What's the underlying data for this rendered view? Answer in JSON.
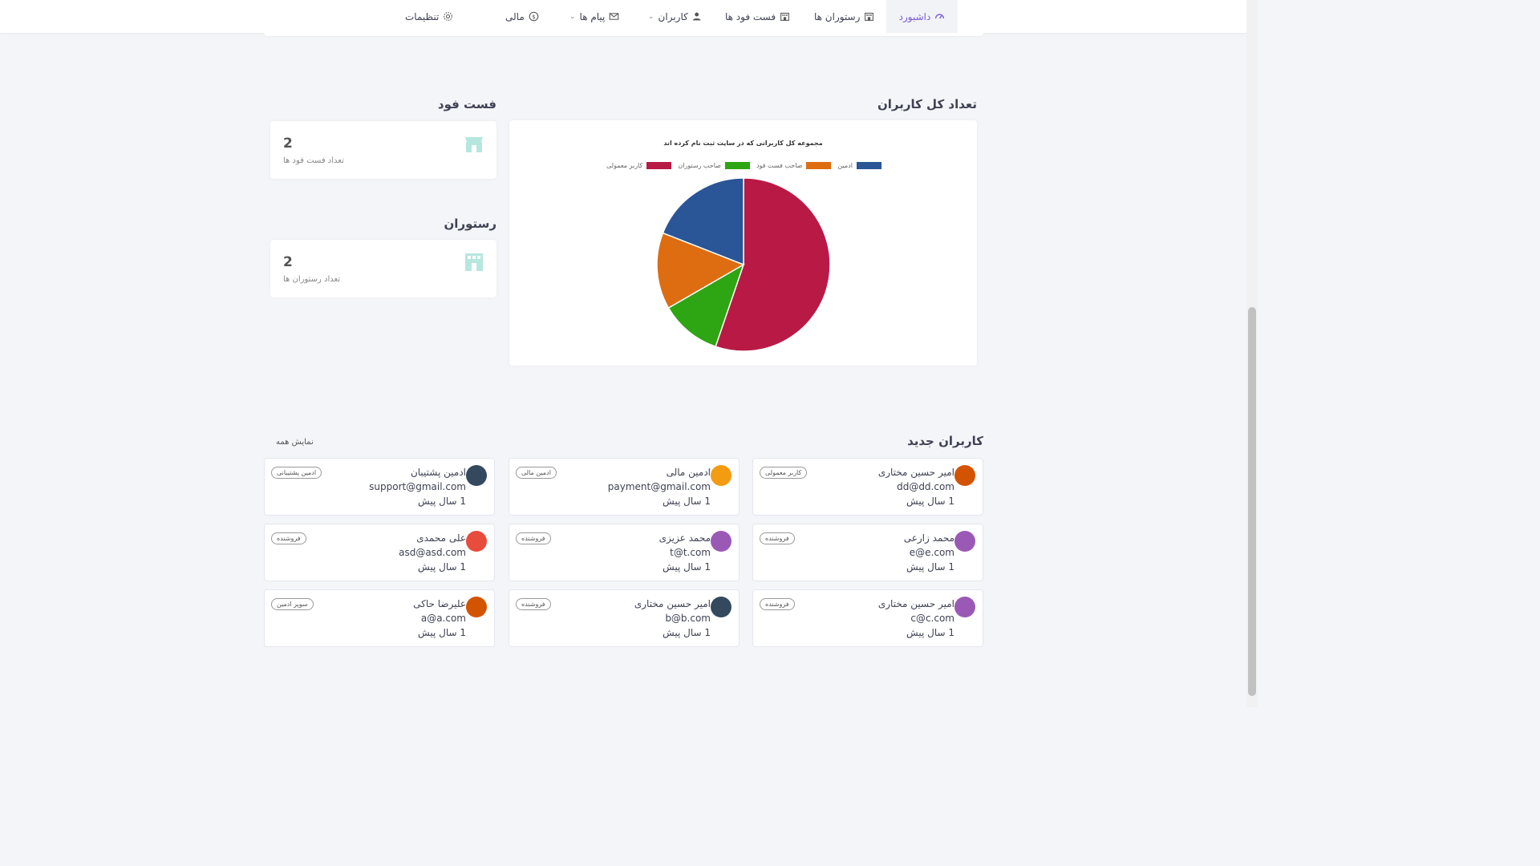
{
  "nav": {
    "dashboard": "داشبورد",
    "restaurants": "رستوران ها",
    "fastfoods": "فست فود ها",
    "users": "کاربران",
    "messages": "پیام ها",
    "finance": "مالی",
    "settings": "تنظیمات",
    "active_color": "#7b5bd6"
  },
  "fastfood_section": {
    "title": "فست فود",
    "count": "2",
    "label": "تعداد فست فود ها"
  },
  "restaurant_section": {
    "title": "رستوران",
    "count": "2",
    "label": "تعداد رستوران ها"
  },
  "users_total": {
    "title": "تعداد کل کاربران"
  },
  "chart_data": {
    "type": "pie",
    "title": "مجموعه کل کاربرانی که در سایت ثبت نام کرده اند",
    "legend_position": "top",
    "labels": [
      "ادمین",
      "صاحب فست فود",
      "صاحب رستوران",
      "کاربر معمولی"
    ],
    "values": [
      2,
      1.5,
      1.2,
      5.8
    ],
    "colors": [
      "#2a5597",
      "#de6d11",
      "#2ea512",
      "#b81a45"
    ]
  },
  "new_users": {
    "title": "کاربران جدید",
    "show_all": "نمایش همه",
    "list": [
      {
        "name": "امیر حسین مختاری",
        "email": "dd@dd.com",
        "time": "1 سال پیش",
        "role": "کاربر معمولی",
        "avatar_color": "#d35400"
      },
      {
        "name": "ادمین مالی",
        "email": "payment@gmail.com",
        "time": "1 سال پیش",
        "role": "ادمین مالی",
        "avatar_color": "#f39c12"
      },
      {
        "name": "ادمین پشتیبان",
        "email": "support@gmail.com",
        "time": "1 سال پیش",
        "role": "ادمین پشتیبانی",
        "avatar_color": "#34495e"
      },
      {
        "name": "محمد زارعی",
        "email": "e@e.com",
        "time": "1 سال پیش",
        "role": "فروشنده",
        "avatar_color": "#9b59b6"
      },
      {
        "name": "محمد عزیزی",
        "email": "t@t.com",
        "time": "1 سال پیش",
        "role": "فروشنده",
        "avatar_color": "#9b59b6"
      },
      {
        "name": "علی محمدی",
        "email": "asd@asd.com",
        "time": "1 سال پیش",
        "role": "فروشنده",
        "avatar_color": "#e74c3c"
      },
      {
        "name": "امیر حسین مختاری",
        "email": "c@c.com",
        "time": "1 سال پیش",
        "role": "فروشنده",
        "avatar_color": "#9b59b6"
      },
      {
        "name": "امیر حسین مختاری",
        "email": "b@b.com",
        "time": "1 سال پیش",
        "role": "فروشنده",
        "avatar_color": "#34495e"
      },
      {
        "name": "علیرضا حاکی",
        "email": "a@a.com",
        "time": "1 سال پیش",
        "role": "سوپر ادمین",
        "avatar_color": "#d35400"
      }
    ]
  }
}
